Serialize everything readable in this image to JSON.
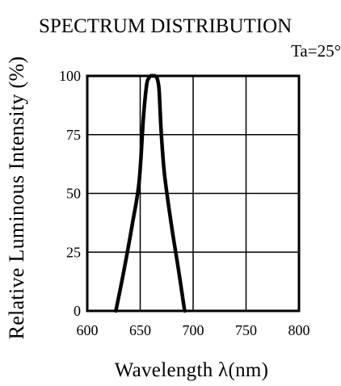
{
  "chart_data": {
    "type": "line",
    "title": "SPECTRUM DISTRIBUTION",
    "annotation": "Ta=25°",
    "xlabel": "Wavelength λ(nm)",
    "ylabel": "Relative Luminous Intensity (%)",
    "xlim": [
      600,
      800
    ],
    "ylim": [
      0,
      100
    ],
    "x_ticks": [
      "600",
      "650",
      "700",
      "750",
      "800"
    ],
    "y_ticks": [
      "100",
      "75",
      "50",
      "25",
      "0"
    ],
    "grid": true,
    "series": [
      {
        "x": [
          627,
          635,
          643,
          649,
          653,
          656,
          658,
          660,
          662,
          664,
          666,
          667,
          668,
          670,
          673,
          679,
          686,
          692
        ],
        "y": [
          0,
          18,
          38,
          55,
          82,
          96,
          99,
          100,
          100,
          100,
          99,
          97,
          93,
          75,
          58,
          38,
          18,
          0
        ]
      }
    ],
    "line_color": "#000000"
  }
}
